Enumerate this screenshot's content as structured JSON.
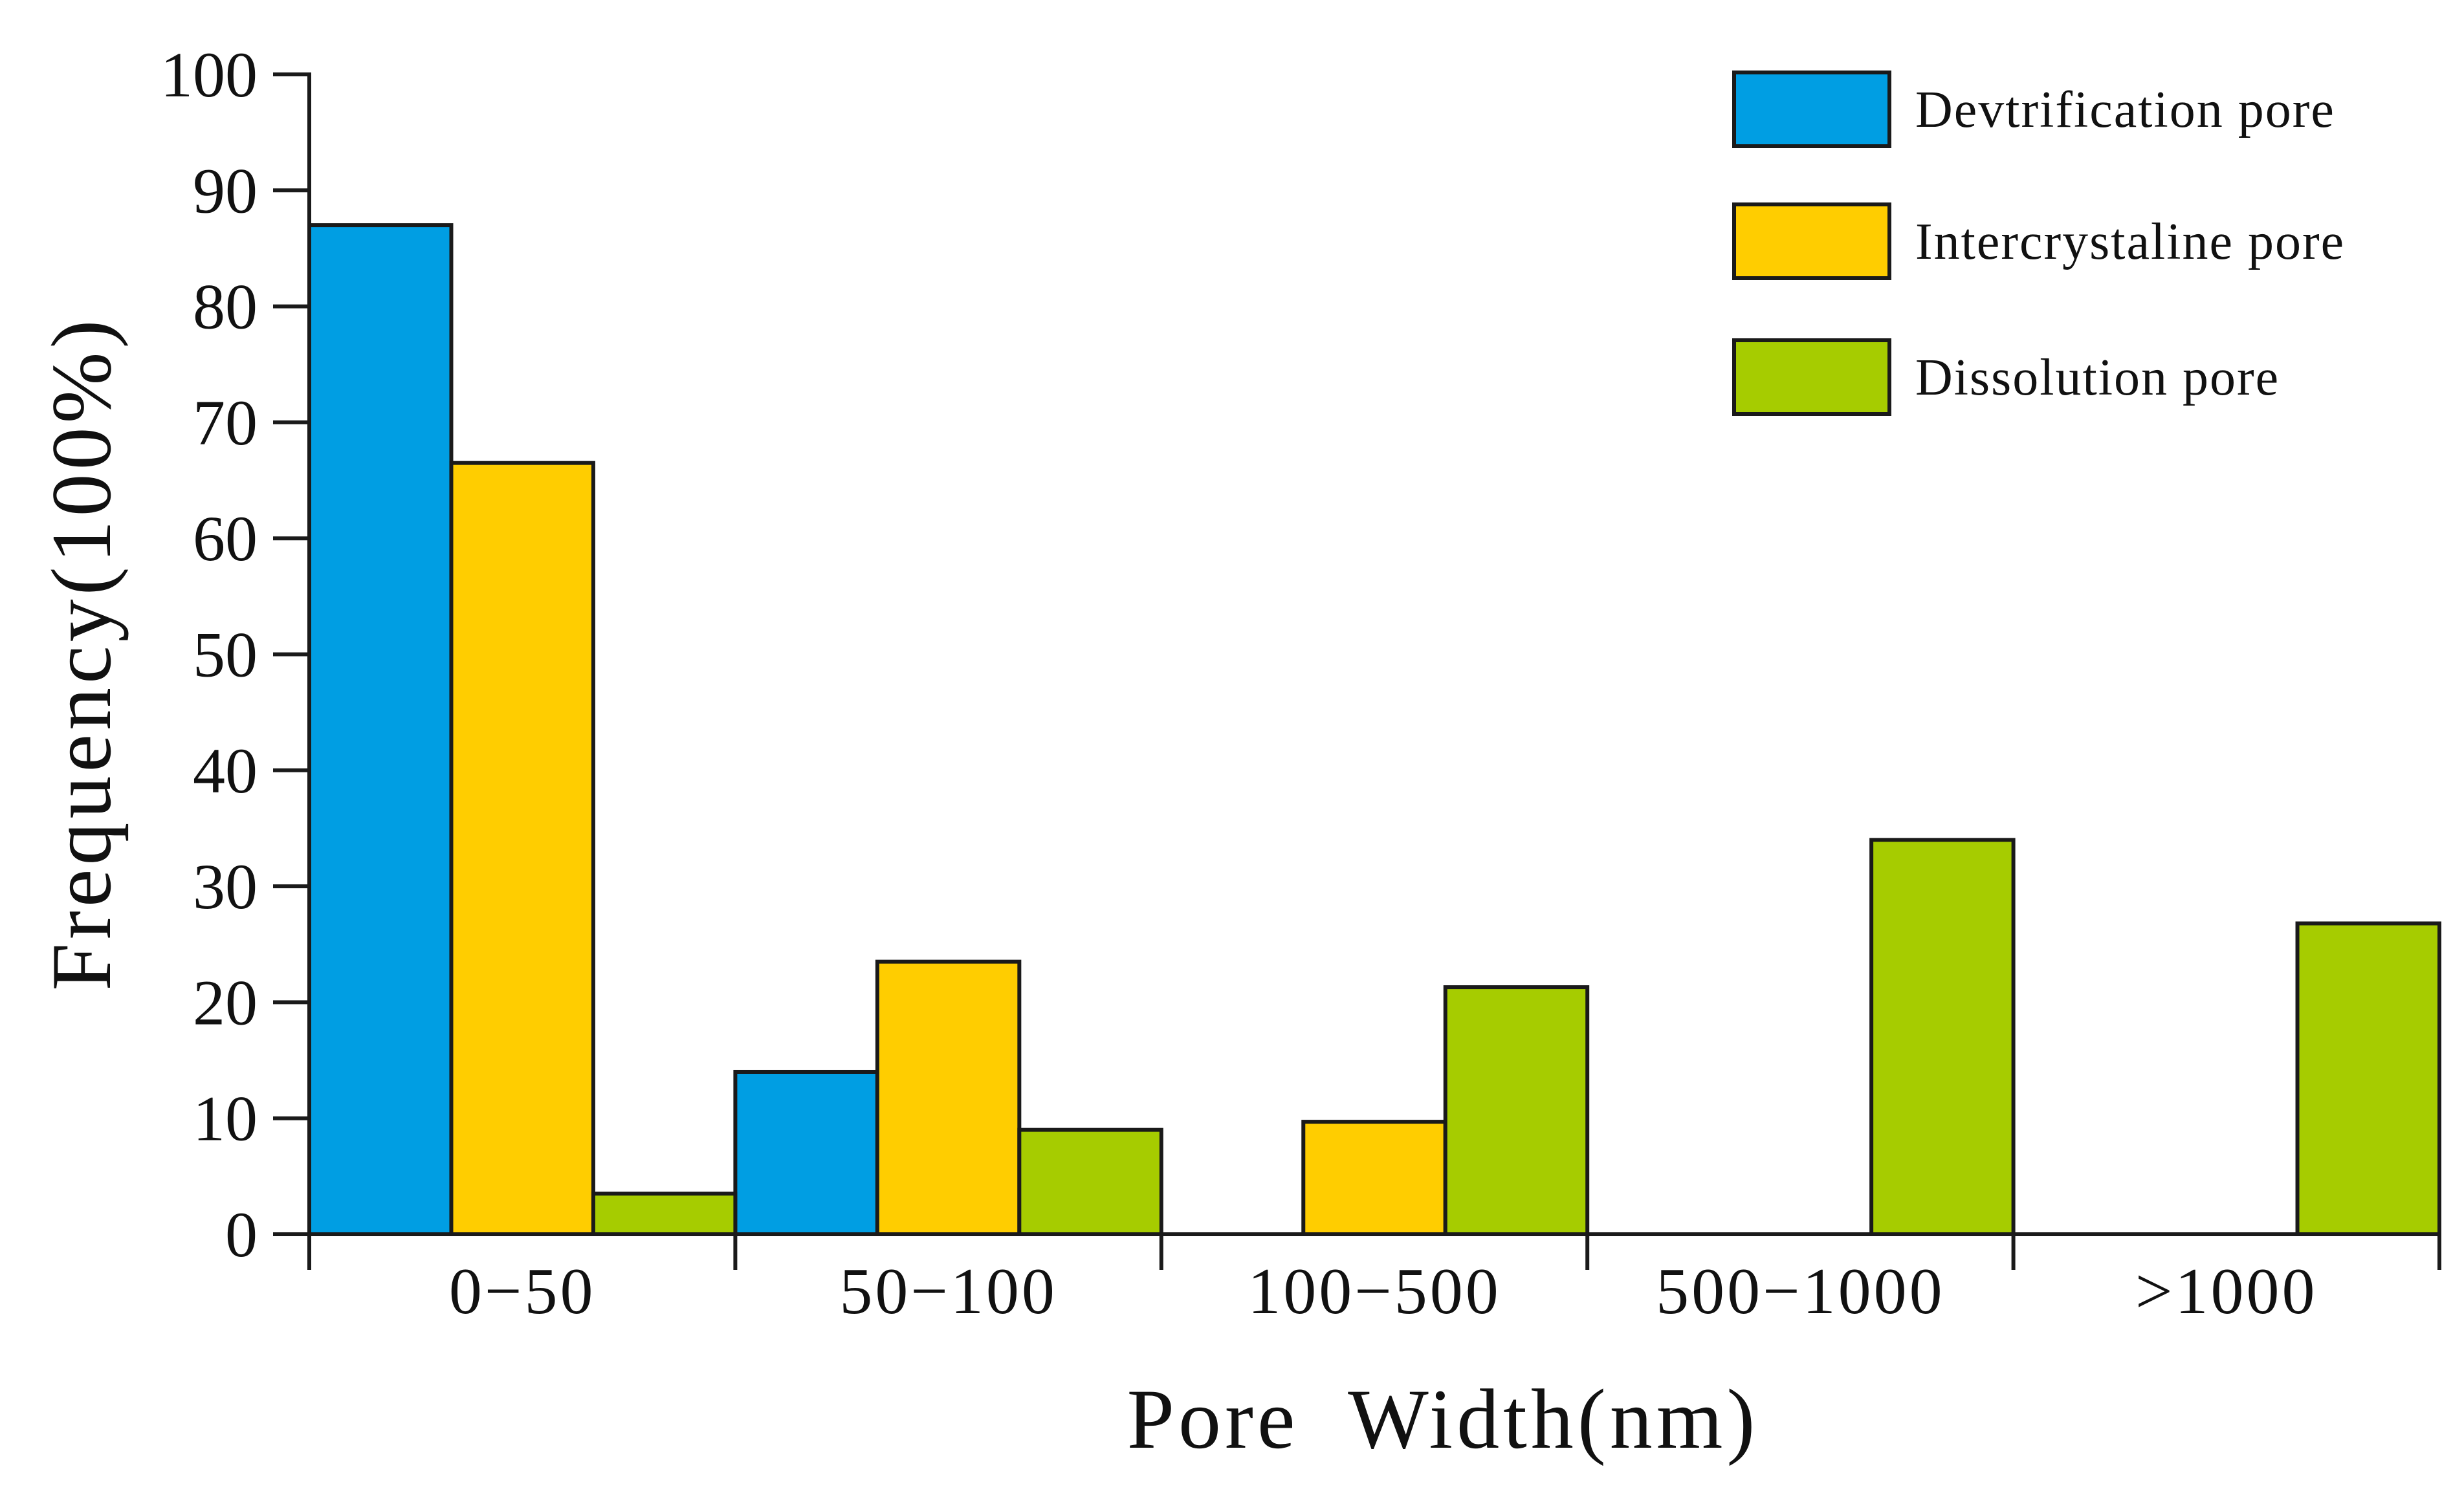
{
  "chart_data": {
    "type": "bar",
    "title": "",
    "xlabel": "Pore  Width(nm)",
    "ylabel": "Frequency(100%)",
    "ylim": [
      0,
      100
    ],
    "yticks": [
      0,
      10,
      20,
      30,
      40,
      50,
      60,
      70,
      80,
      90,
      100
    ],
    "categories": [
      "0−50",
      "50−100",
      "100−500",
      "500−1000",
      ">1000"
    ],
    "series": [
      {
        "name": "Devtrification pore",
        "color": "#009ee3",
        "values": [
          87,
          14,
          null,
          null,
          null
        ]
      },
      {
        "name": "Intercrystaline pore",
        "color": "#ffcd00",
        "values": [
          66.5,
          23.5,
          9.7,
          null,
          null
        ]
      },
      {
        "name": "Dissolution pore",
        "color": "#a6cc00",
        "values": [
          3.5,
          9,
          21.3,
          34,
          26.8
        ]
      }
    ],
    "legend_position": "top-right",
    "grid": false
  }
}
